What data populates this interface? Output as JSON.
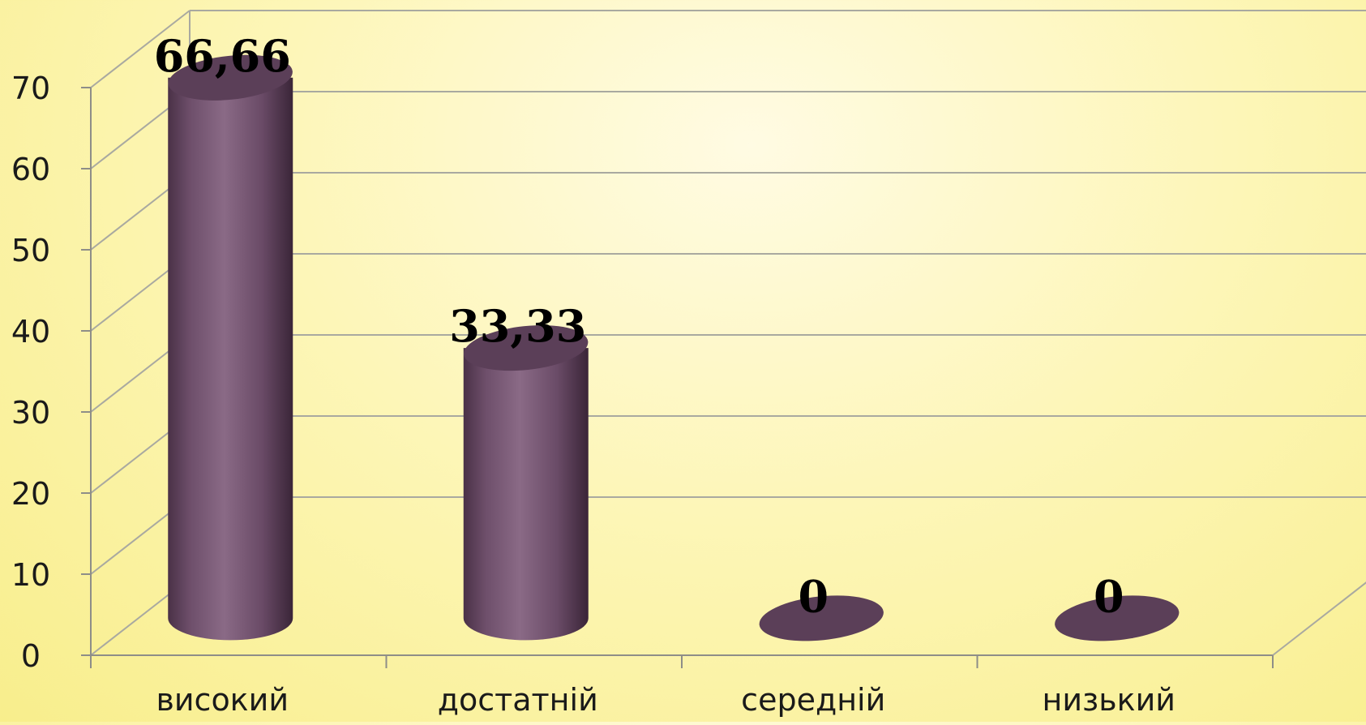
{
  "chart_data": {
    "type": "bar",
    "categories": [
      "високий",
      "достатній",
      "середній",
      "низький"
    ],
    "values": [
      66.66,
      33.33,
      0,
      0
    ],
    "value_labels": [
      "66,66",
      "33,33",
      "0",
      "0"
    ],
    "y_ticks": [
      "0",
      "10",
      "20",
      "30",
      "40",
      "50",
      "60",
      "70"
    ],
    "ylim": [
      0,
      70
    ],
    "title": "",
    "xlabel": "",
    "ylabel": "",
    "grid": true,
    "legend": "none",
    "style": "3d-cylinder"
  },
  "colors": {
    "bar": "#7b5a78",
    "bar_dark": "#4b3248",
    "bar_top": "#5b3f58",
    "grid": "#a9a9a0",
    "axis": "#8e8e88",
    "background": "#fdf6b8",
    "text": "#1a1a1a"
  }
}
